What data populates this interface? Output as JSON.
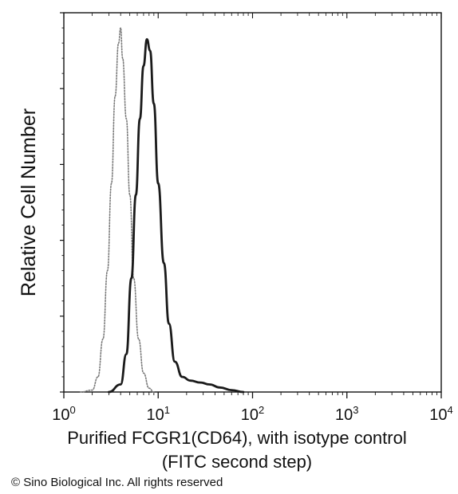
{
  "chart_data": {
    "type": "area",
    "title": "",
    "xlabel": "Purified FCGR1(CD64), with isotype control",
    "xlabel_line2": "(FITC second step)",
    "ylabel": "Relative Cell Number",
    "x_scale": "log",
    "xlim": [
      1,
      10000
    ],
    "ylim": [
      0,
      1
    ],
    "grid": false,
    "legend": "none",
    "x_ticks": [
      {
        "base": "10",
        "exp": "0",
        "value": 1
      },
      {
        "base": "10",
        "exp": "1",
        "value": 10
      },
      {
        "base": "10",
        "exp": "2",
        "value": 100
      },
      {
        "base": "10",
        "exp": "3",
        "value": 1000
      },
      {
        "base": "10",
        "exp": "4",
        "value": 10000
      }
    ],
    "y_ticks": [
      0,
      0.2,
      0.4,
      0.6,
      0.8,
      1.0
    ],
    "series": [
      {
        "style": "dotted",
        "color": "#7a7a7a",
        "points": [
          [
            1.5,
            0
          ],
          [
            2.0,
            0.005
          ],
          [
            2.3,
            0.04
          ],
          [
            2.6,
            0.14
          ],
          [
            2.9,
            0.32
          ],
          [
            3.2,
            0.55
          ],
          [
            3.5,
            0.78
          ],
          [
            3.8,
            0.92
          ],
          [
            4.0,
            0.96
          ],
          [
            4.2,
            0.88
          ],
          [
            4.6,
            0.72
          ],
          [
            5.0,
            0.52
          ],
          [
            5.5,
            0.3
          ],
          [
            6.2,
            0.14
          ],
          [
            7.0,
            0.05
          ],
          [
            8.0,
            0.01
          ],
          [
            9.0,
            0
          ]
        ]
      },
      {
        "style": "solid",
        "color": "#1a1a1a",
        "points": [
          [
            3.0,
            0
          ],
          [
            4.0,
            0.02
          ],
          [
            4.6,
            0.1
          ],
          [
            5.2,
            0.3
          ],
          [
            5.8,
            0.52
          ],
          [
            6.4,
            0.72
          ],
          [
            7.0,
            0.86
          ],
          [
            7.6,
            0.93
          ],
          [
            8.2,
            0.9
          ],
          [
            9.0,
            0.76
          ],
          [
            10.0,
            0.55
          ],
          [
            11.5,
            0.34
          ],
          [
            13.0,
            0.18
          ],
          [
            15.0,
            0.08
          ],
          [
            18.0,
            0.04
          ],
          [
            22.0,
            0.03
          ],
          [
            28.0,
            0.025
          ],
          [
            35.0,
            0.02
          ],
          [
            45.0,
            0.012
          ],
          [
            60.0,
            0.005
          ],
          [
            80.0,
            0
          ]
        ]
      }
    ]
  },
  "copyright": "© Sino Biological Inc. All rights reserved"
}
